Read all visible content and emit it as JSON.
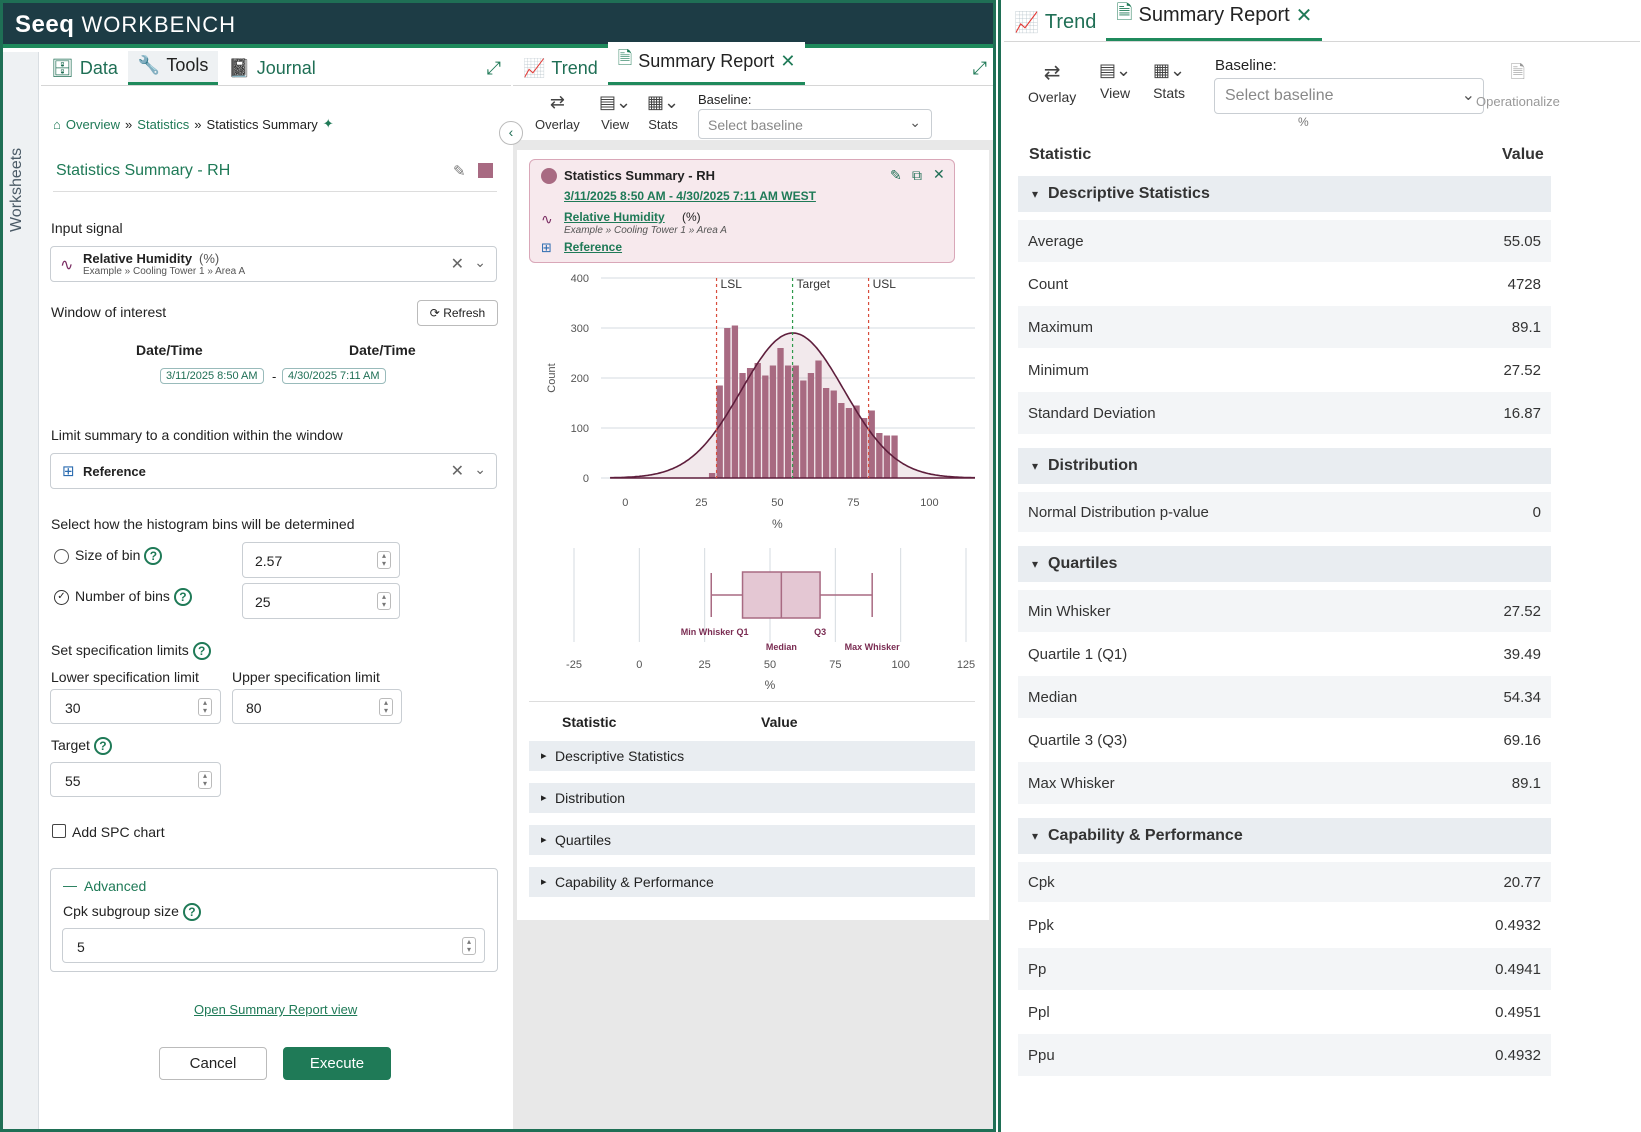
{
  "app": {
    "logo": "Seeq",
    "logo_suffix": "WORKBENCH"
  },
  "sidebar_vertical_tab": "Worksheets",
  "left_tabs": [
    {
      "label": "Data",
      "icon": "database-icon"
    },
    {
      "label": "Tools",
      "icon": "wrench-icon"
    },
    {
      "label": "Journal",
      "icon": "journal-icon"
    }
  ],
  "breadcrumb": {
    "items": [
      "Overview",
      "Statistics",
      "Statistics Summary"
    ],
    "separator": "»"
  },
  "tool": {
    "title": "Statistics Summary - RH",
    "input_signal_label": "Input signal",
    "signal_name": "Relative Humidity",
    "signal_unit": "(%)",
    "signal_path": "Example » Cooling Tower 1 » Area A",
    "window_label": "Window of interest",
    "refresh_label": "Refresh",
    "date_header_start": "Date/Time",
    "date_header_end": "Date/Time",
    "start_date": "3/11/2025 8:50 AM",
    "end_date": "4/30/2025 7:11 AM",
    "date_separator": "-",
    "condition_label": "Limit summary to a condition within the window",
    "condition_name": "Reference",
    "bins_label": "Select how the histogram bins will be determined",
    "size_of_bin_label": "Size of bin",
    "size_of_bin_value": "2.57",
    "num_bins_label": "Number of bins",
    "num_bins_value": "25",
    "spec_label": "Set specification limits",
    "lsl_label": "Lower specification limit",
    "usl_label": "Upper specification limit",
    "lsl_value": "30",
    "usl_value": "80",
    "target_label": "Target",
    "target_value": "55",
    "spc_label": "Add SPC chart",
    "advanced_label": "Advanced",
    "cpk_label": "Cpk subgroup size",
    "cpk_value": "5",
    "open_report_link": "Open Summary Report view",
    "cancel_label": "Cancel",
    "execute_label": "Execute"
  },
  "mid_tabs": [
    {
      "label": "Trend"
    },
    {
      "label": "Summary Report"
    }
  ],
  "toolbar": {
    "overlay": "Overlay",
    "view": "View",
    "stats": "Stats",
    "baseline_label": "Baseline:",
    "baseline_placeholder": "Select baseline",
    "operationalize": "Operationalize"
  },
  "card": {
    "title": "Statistics Summary - RH",
    "date_range": "3/11/2025 8:50 AM - 4/30/2025 7:11 AM WEST",
    "signal_name": "Relative Humidity",
    "signal_unit": "(%)",
    "signal_path": "Example » Cooling Tower 1 » Area A",
    "condition": "Reference",
    "color": "#a86a82"
  },
  "chart_data": [
    {
      "type": "bar",
      "ylabel": "Count",
      "xlabel": "%",
      "xlim": [
        -8,
        115
      ],
      "ylim": [
        0,
        400
      ],
      "x_ticks": [
        0,
        25,
        50,
        75,
        100
      ],
      "y_ticks": [
        0,
        100,
        200,
        300,
        400
      ],
      "bin_starts": [
        27.5,
        30,
        32.5,
        35,
        37.5,
        40,
        42.5,
        45,
        47.5,
        50,
        52.5,
        55,
        57.5,
        60,
        62.5,
        65,
        67.5,
        70,
        72.5,
        75,
        77.5,
        80,
        82.5,
        85,
        87.5
      ],
      "bin_width": 2.57,
      "values": [
        10,
        185,
        300,
        305,
        210,
        220,
        230,
        205,
        225,
        260,
        225,
        225,
        195,
        210,
        235,
        180,
        175,
        150,
        140,
        145,
        120,
        135,
        90,
        85,
        85
      ],
      "spec_lines": [
        {
          "label": "LSL",
          "x": 30,
          "color": "#d84d3c"
        },
        {
          "label": "Target",
          "x": 55,
          "color": "#2e9a4a"
        },
        {
          "label": "USL",
          "x": 80,
          "color": "#d84d3c"
        }
      ],
      "normal_fit": {
        "mean": 55.05,
        "std": 16.87,
        "peak": 290
      },
      "bar_color": "#a86a82"
    },
    {
      "type": "boxplot",
      "xlabel": "%",
      "xlim": [
        -25,
        125
      ],
      "x_ticks": [
        -25,
        0,
        25,
        50,
        75,
        100,
        125
      ],
      "min_whisker": 27.52,
      "q1": 39.49,
      "median": 54.34,
      "q3": 69.16,
      "max_whisker": 89.1,
      "labels": {
        "min": "Min Whisker",
        "q1": "Q1",
        "median": "Median",
        "q3": "Q3",
        "max": "Max Whisker"
      }
    }
  ],
  "mid_table": {
    "col_stat": "Statistic",
    "col_value": "Value",
    "sections": [
      "Descriptive Statistics",
      "Distribution",
      "Quartiles",
      "Capability & Performance"
    ]
  },
  "right_panel": {
    "unit_hint": "%",
    "col_stat": "Statistic",
    "col_value": "Value",
    "sections": [
      {
        "title": "Descriptive Statistics",
        "rows": [
          [
            "Average",
            "55.05"
          ],
          [
            "Count",
            "4728"
          ],
          [
            "Maximum",
            "89.1"
          ],
          [
            "Minimum",
            "27.52"
          ],
          [
            "Standard Deviation",
            "16.87"
          ]
        ]
      },
      {
        "title": "Distribution",
        "rows": [
          [
            "Normal Distribution p-value",
            "0"
          ]
        ]
      },
      {
        "title": "Quartiles",
        "rows": [
          [
            "Min Whisker",
            "27.52"
          ],
          [
            "Quartile 1 (Q1)",
            "39.49"
          ],
          [
            "Median",
            "54.34"
          ],
          [
            "Quartile 3 (Q3)",
            "69.16"
          ],
          [
            "Max Whisker",
            "89.1"
          ]
        ]
      },
      {
        "title": "Capability & Performance",
        "rows": [
          [
            "Cpk",
            "20.77"
          ],
          [
            "Ppk",
            "0.4932"
          ],
          [
            "Pp",
            "0.4941"
          ],
          [
            "Ppl",
            "0.4951"
          ],
          [
            "Ppu",
            "0.4932"
          ]
        ]
      }
    ]
  }
}
